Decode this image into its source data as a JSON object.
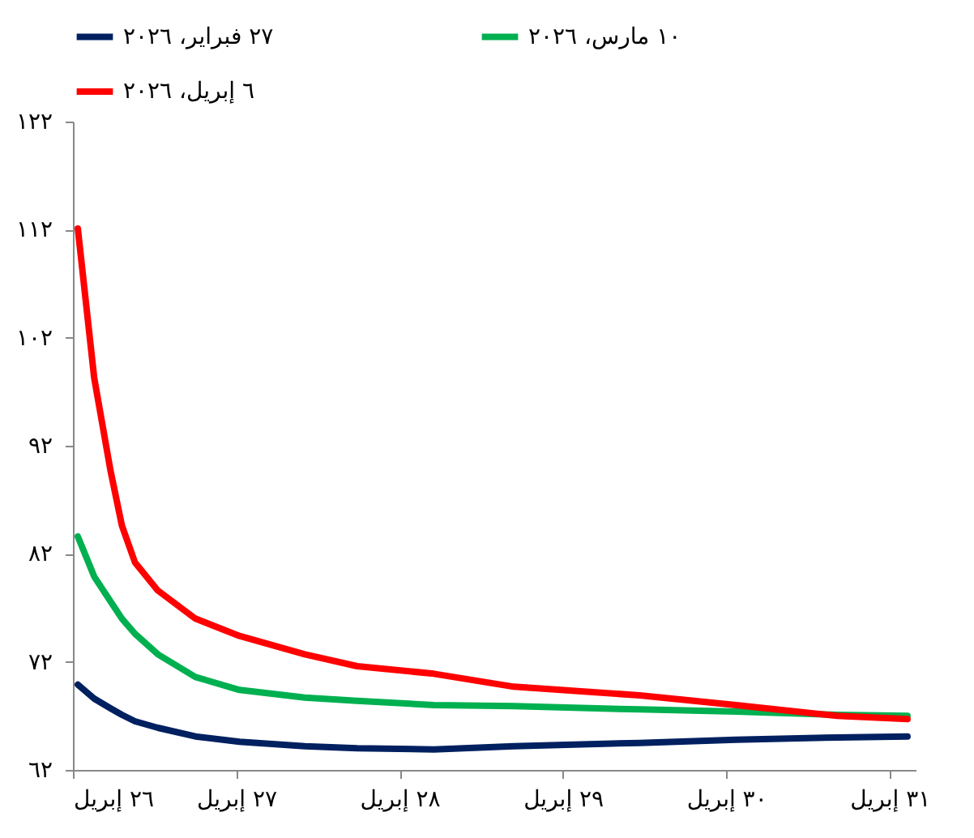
{
  "chart_data": {
    "type": "line",
    "x": [
      26.03,
      26.13,
      26.23,
      26.3,
      26.38,
      26.52,
      26.75,
      27.02,
      27.42,
      27.74,
      28.21,
      28.7,
      29.47,
      30.06,
      30.68,
      31.11
    ],
    "series": [
      {
        "name": "٢٧ فبراير، ٢٠٢٦",
        "color": "#002060",
        "values": [
          69.9,
          68.6,
          67.7,
          67.1,
          66.5,
          65.9,
          65.1,
          64.6,
          64.2,
          64.0,
          63.9,
          64.2,
          64.5,
          64.8,
          65.0,
          65.1
        ]
      },
      {
        "name": "١٠ مارس، ٢٠٢٦",
        "color": "#00b050",
        "values": [
          83.6,
          79.9,
          77.6,
          76.0,
          74.6,
          72.7,
          70.6,
          69.4,
          68.7,
          68.4,
          68.0,
          67.9,
          67.6,
          67.4,
          67.1,
          67.0
        ]
      },
      {
        "name": "٦ إبريل، ٢٠٢٦",
        "color": "#ff0000",
        "values": [
          112.1,
          98.3,
          89.7,
          84.6,
          81.2,
          78.6,
          76.0,
          74.4,
          72.7,
          71.6,
          70.9,
          69.7,
          68.9,
          68.0,
          67.0,
          66.7
        ]
      }
    ],
    "xlim": [
      26,
      31.16
    ],
    "xticks": [
      {
        "value": 26,
        "label": "٢٦ إبريل"
      },
      {
        "value": 27,
        "label": "٢٧ إبريل"
      },
      {
        "value": 28,
        "label": "٢٨ إبريل"
      },
      {
        "value": 29,
        "label": "٢٩ إبريل"
      },
      {
        "value": 30,
        "label": "٣٠ إبريل"
      },
      {
        "value": 31,
        "label": "٣١ إبريل"
      }
    ],
    "ylim": [
      62,
      122
    ],
    "yticks": [
      {
        "value": 62,
        "label": "٦٢"
      },
      {
        "value": 72,
        "label": "٧٢"
      },
      {
        "value": 82,
        "label": "٨٢"
      },
      {
        "value": 92,
        "label": "٩٢"
      },
      {
        "value": 102,
        "label": "١٠٢"
      },
      {
        "value": 112,
        "label": "١١٢"
      },
      {
        "value": 122,
        "label": "١٢٢"
      }
    ],
    "grid": false,
    "legend": "top",
    "marker": "none",
    "line_style": "solid"
  }
}
